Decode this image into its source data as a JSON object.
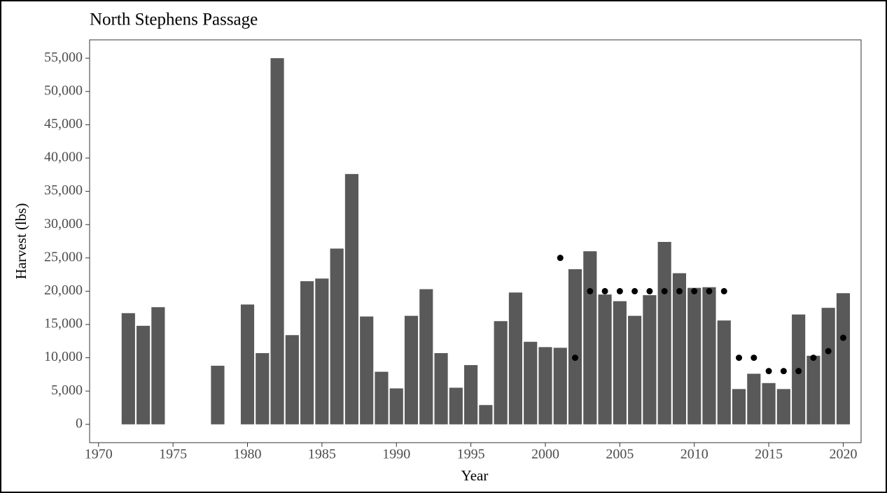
{
  "chart_data": {
    "type": "bar",
    "title": "North Stephens Passage",
    "x_label": "Year",
    "y_label": "Harvest (lbs)",
    "x": [
      1972,
      1973,
      1974,
      1978,
      1980,
      1981,
      1982,
      1983,
      1984,
      1985,
      1986,
      1987,
      1988,
      1989,
      1990,
      1991,
      1992,
      1993,
      1994,
      1995,
      1996,
      1997,
      1998,
      1999,
      2000,
      2001,
      2002,
      2003,
      2004,
      2005,
      2006,
      2007,
      2008,
      2009,
      2010,
      2011,
      2012,
      2013,
      2014,
      2015,
      2016,
      2017,
      2018,
      2019,
      2020
    ],
    "values": [
      16700,
      14800,
      17600,
      8800,
      18000,
      10700,
      55000,
      13400,
      21500,
      21900,
      26400,
      37600,
      16200,
      7900,
      5400,
      16300,
      20300,
      10700,
      5500,
      8900,
      2900,
      15500,
      19800,
      12400,
      11600,
      11500,
      23300,
      26000,
      19500,
      18500,
      16300,
      19400,
      27400,
      22700,
      20500,
      20600,
      15600,
      5300,
      7600,
      6200,
      5300,
      16500,
      10300,
      17500,
      19700
    ],
    "color": "#595959",
    "overlay": {
      "type": "scatter",
      "color": "#000000",
      "x": [
        2001,
        2002,
        2003,
        2004,
        2005,
        2006,
        2007,
        2008,
        2009,
        2010,
        2011,
        2012,
        2013,
        2014,
        2015,
        2016,
        2017,
        2018,
        2019,
        2020
      ],
      "values": [
        25000,
        10000,
        20000,
        20000,
        20000,
        20000,
        20000,
        20000,
        20000,
        20000,
        20000,
        20000,
        10000,
        10000,
        8000,
        8000,
        8000,
        10000,
        11000,
        13000
      ]
    },
    "xlim": [
      1969.4,
      2021.2
    ],
    "ylim": [
      -2750,
      57750
    ],
    "xticks": [
      1970,
      1975,
      1980,
      1985,
      1990,
      1995,
      2000,
      2005,
      2010,
      2015,
      2020
    ],
    "yticks": [
      0,
      {
        "value": 5000,
        "label": "5,000"
      },
      {
        "value": 10000,
        "label": "10,000"
      },
      {
        "value": 15000,
        "label": "15,000"
      },
      {
        "value": 20000,
        "label": "20,000"
      },
      {
        "value": 25000,
        "label": "25,000"
      },
      {
        "value": 30000,
        "label": "30,000"
      },
      {
        "value": 35000,
        "label": "35,000"
      },
      {
        "value": 40000,
        "label": "40,000"
      },
      {
        "value": 45000,
        "label": "45,000"
      },
      {
        "value": 50000,
        "label": "50,000"
      },
      {
        "value": 55000,
        "label": "55,000"
      }
    ]
  }
}
